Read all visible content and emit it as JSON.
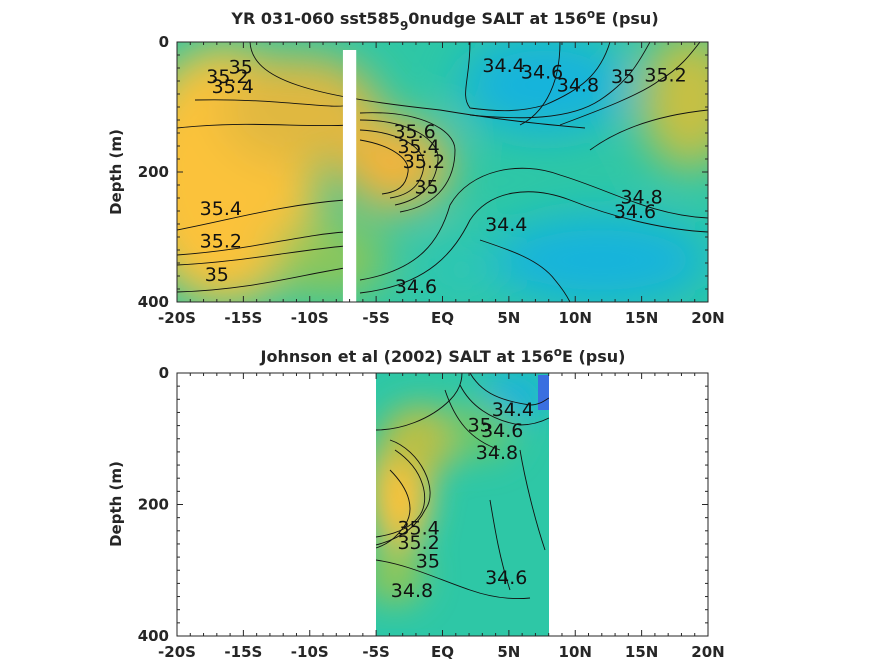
{
  "colors": {
    "fresh_deep": "#3a6fe0",
    "fresh": "#12b4dc",
    "mid_fresh": "#1bc0c6",
    "mid": "#2ec7a6",
    "mid_salty": "#66c86f",
    "salty": "#b8bf47",
    "very_salty": "#f3b43a",
    "saltiest": "#fbc23b",
    "axis": "#262626"
  },
  "chart_data": [
    {
      "type": "heatmap",
      "title_main": "YR 031-060 sst585",
      "title_sub": "9",
      "title_end": "0nudge SALT at 156",
      "title_deg": "o",
      "title_unit": "E (psu)",
      "ylabel": "Depth (m)",
      "xlabel": "",
      "xlim": [
        -20,
        20
      ],
      "ylim": [
        400,
        0
      ],
      "x_ticks": [
        -20,
        -15,
        -10,
        -5,
        0,
        5,
        10,
        15,
        20
      ],
      "x_tick_labels": [
        "-20S",
        "-15S",
        "-10S",
        "-5S",
        "EQ",
        "5N",
        "10N",
        "15N",
        "20N"
      ],
      "y_ticks": [
        0,
        200,
        400
      ],
      "y_tick_labels": [
        "0",
        "200",
        "400"
      ],
      "data_coverage": {
        "lat_min": -20,
        "lat_max": 20
      },
      "gaps": [
        {
          "lat_min": -7.5,
          "lat_max": -6.5
        }
      ],
      "contour_labels": [
        {
          "text": "35",
          "lat": -15.2,
          "depth": 38
        },
        {
          "text": "35.2",
          "lat": -16.2,
          "depth": 52
        },
        {
          "text": "35.4",
          "lat": -15.8,
          "depth": 68
        },
        {
          "text": "34.4",
          "lat": 4.6,
          "depth": 35
        },
        {
          "text": "34.6",
          "lat": 7.5,
          "depth": 45
        },
        {
          "text": "34.8",
          "lat": 10.2,
          "depth": 65
        },
        {
          "text": "35",
          "lat": 13.6,
          "depth": 52
        },
        {
          "text": "35.2",
          "lat": 16.8,
          "depth": 50
        },
        {
          "text": "35.6",
          "lat": -2.1,
          "depth": 137
        },
        {
          "text": "35.4",
          "lat": -1.8,
          "depth": 160
        },
        {
          "text": "35.2",
          "lat": -1.4,
          "depth": 183
        },
        {
          "text": "35",
          "lat": -1.2,
          "depth": 222
        },
        {
          "text": "34.8",
          "lat": 15.0,
          "depth": 238
        },
        {
          "text": "34.6",
          "lat": 14.5,
          "depth": 260
        },
        {
          "text": "34.4",
          "lat": 4.8,
          "depth": 280
        },
        {
          "text": "35.4",
          "lat": -16.7,
          "depth": 255
        },
        {
          "text": "35.2",
          "lat": -16.7,
          "depth": 305
        },
        {
          "text": "35",
          "lat": -17.0,
          "depth": 357
        },
        {
          "text": "34.6",
          "lat": -2.0,
          "depth": 375
        }
      ]
    },
    {
      "type": "heatmap",
      "title_main": "Johnson et al (2002) SALT at 156",
      "title_sub": "",
      "title_end": "",
      "title_deg": "o",
      "title_unit": "E (psu)",
      "ylabel": "Depth (m)",
      "xlabel": "",
      "xlim": [
        -20,
        20
      ],
      "ylim": [
        400,
        0
      ],
      "x_ticks": [
        -20,
        -15,
        -10,
        -5,
        0,
        5,
        10,
        15,
        20
      ],
      "x_tick_labels": [
        "-20S",
        "-15S",
        "-10S",
        "-5S",
        "EQ",
        "5N",
        "10N",
        "15N",
        "20N"
      ],
      "y_ticks": [
        0,
        200,
        400
      ],
      "y_tick_labels": [
        "0",
        "200",
        "400"
      ],
      "data_coverage": {
        "lat_min": -5,
        "lat_max": 8
      },
      "gaps": [],
      "contour_labels": [
        {
          "text": "34.4",
          "lat": 5.3,
          "depth": 55
        },
        {
          "text": "34.6",
          "lat": 4.5,
          "depth": 87
        },
        {
          "text": "35",
          "lat": 2.8,
          "depth": 78
        },
        {
          "text": "34.8",
          "lat": 4.1,
          "depth": 120
        },
        {
          "text": "35.4",
          "lat": -1.8,
          "depth": 235
        },
        {
          "text": "35.2",
          "lat": -1.8,
          "depth": 257
        },
        {
          "text": "35",
          "lat": -1.1,
          "depth": 285
        },
        {
          "text": "34.6",
          "lat": 4.8,
          "depth": 310
        },
        {
          "text": "34.8",
          "lat": -2.3,
          "depth": 330
        }
      ]
    }
  ]
}
